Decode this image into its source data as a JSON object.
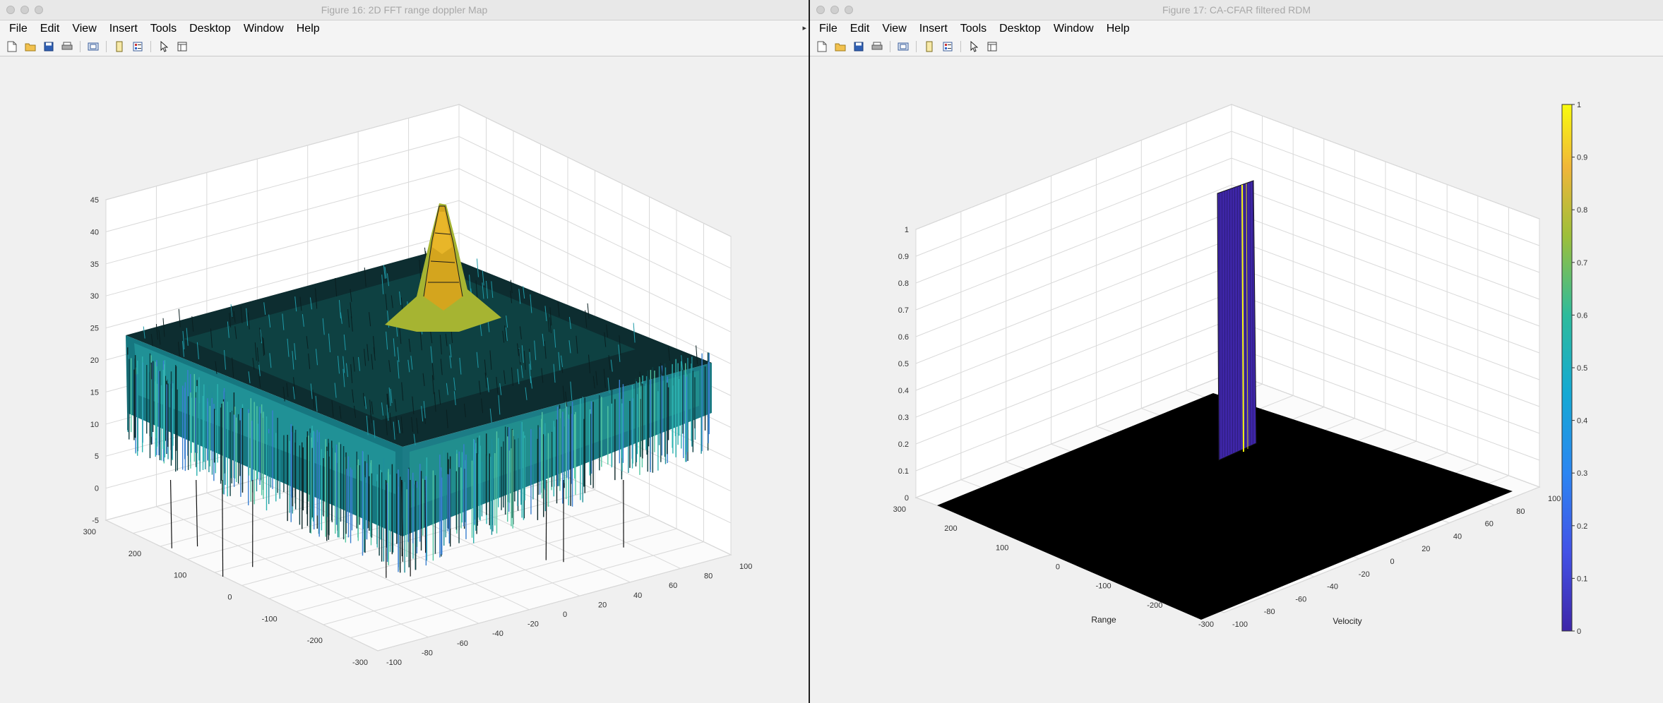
{
  "windows": [
    {
      "title": "Figure 16: 2D FFT range doppler Map",
      "menus": [
        "File",
        "Edit",
        "View",
        "Insert",
        "Tools",
        "Desktop",
        "Window",
        "Help"
      ],
      "toolbar_icons": [
        "new-figure-icon",
        "open-file-icon",
        "save-icon",
        "print-icon",
        "print-preview-icon",
        "link-data-icon",
        "insert-colorbar-icon",
        "edit-plot-icon",
        "property-inspector-icon"
      ],
      "z_ticks": [
        "45",
        "40",
        "35",
        "30",
        "25",
        "20",
        "15",
        "10",
        "5",
        "0",
        "-5"
      ],
      "left_ticks": [
        "300",
        "200",
        "100",
        "0",
        "-100",
        "-200",
        "-300"
      ],
      "right_ticks": [
        "-100",
        "-80",
        "-60",
        "-40",
        "-20",
        "0",
        "20",
        "40",
        "60",
        "80",
        "100"
      ]
    },
    {
      "title": "Figure 17: CA-CFAR filtered RDM",
      "menus": [
        "File",
        "Edit",
        "View",
        "Insert",
        "Tools",
        "Desktop",
        "Window",
        "Help"
      ],
      "toolbar_icons": [
        "new-figure-icon",
        "open-file-icon",
        "save-icon",
        "print-icon",
        "print-preview-icon",
        "link-data-icon",
        "insert-colorbar-icon",
        "edit-plot-icon",
        "property-inspector-icon"
      ],
      "z_ticks": [
        "1",
        "0.9",
        "0.8",
        "0.7",
        "0.6",
        "0.5",
        "0.4",
        "0.3",
        "0.2",
        "0.1",
        "0"
      ],
      "left_ticks": [
        "300",
        "200",
        "100",
        "0",
        "-100",
        "-200",
        "-300"
      ],
      "right_ticks": [
        "-100",
        "-80",
        "-60",
        "-40",
        "-20",
        "0",
        "20",
        "40",
        "60",
        "80",
        "100"
      ],
      "xlabel": "Range",
      "ylabel": "Velocity",
      "colorbar_ticks": [
        "1",
        "0.9",
        "0.8",
        "0.7",
        "0.6",
        "0.5",
        "0.4",
        "0.3",
        "0.2",
        "0.1",
        "0"
      ]
    }
  ],
  "colors": {
    "surface_peak": "#d4a51e",
    "surface_noise": "#1f9aa8",
    "colormap_low": "#3e26a8",
    "colormap_high": "#f9fb0e"
  }
}
